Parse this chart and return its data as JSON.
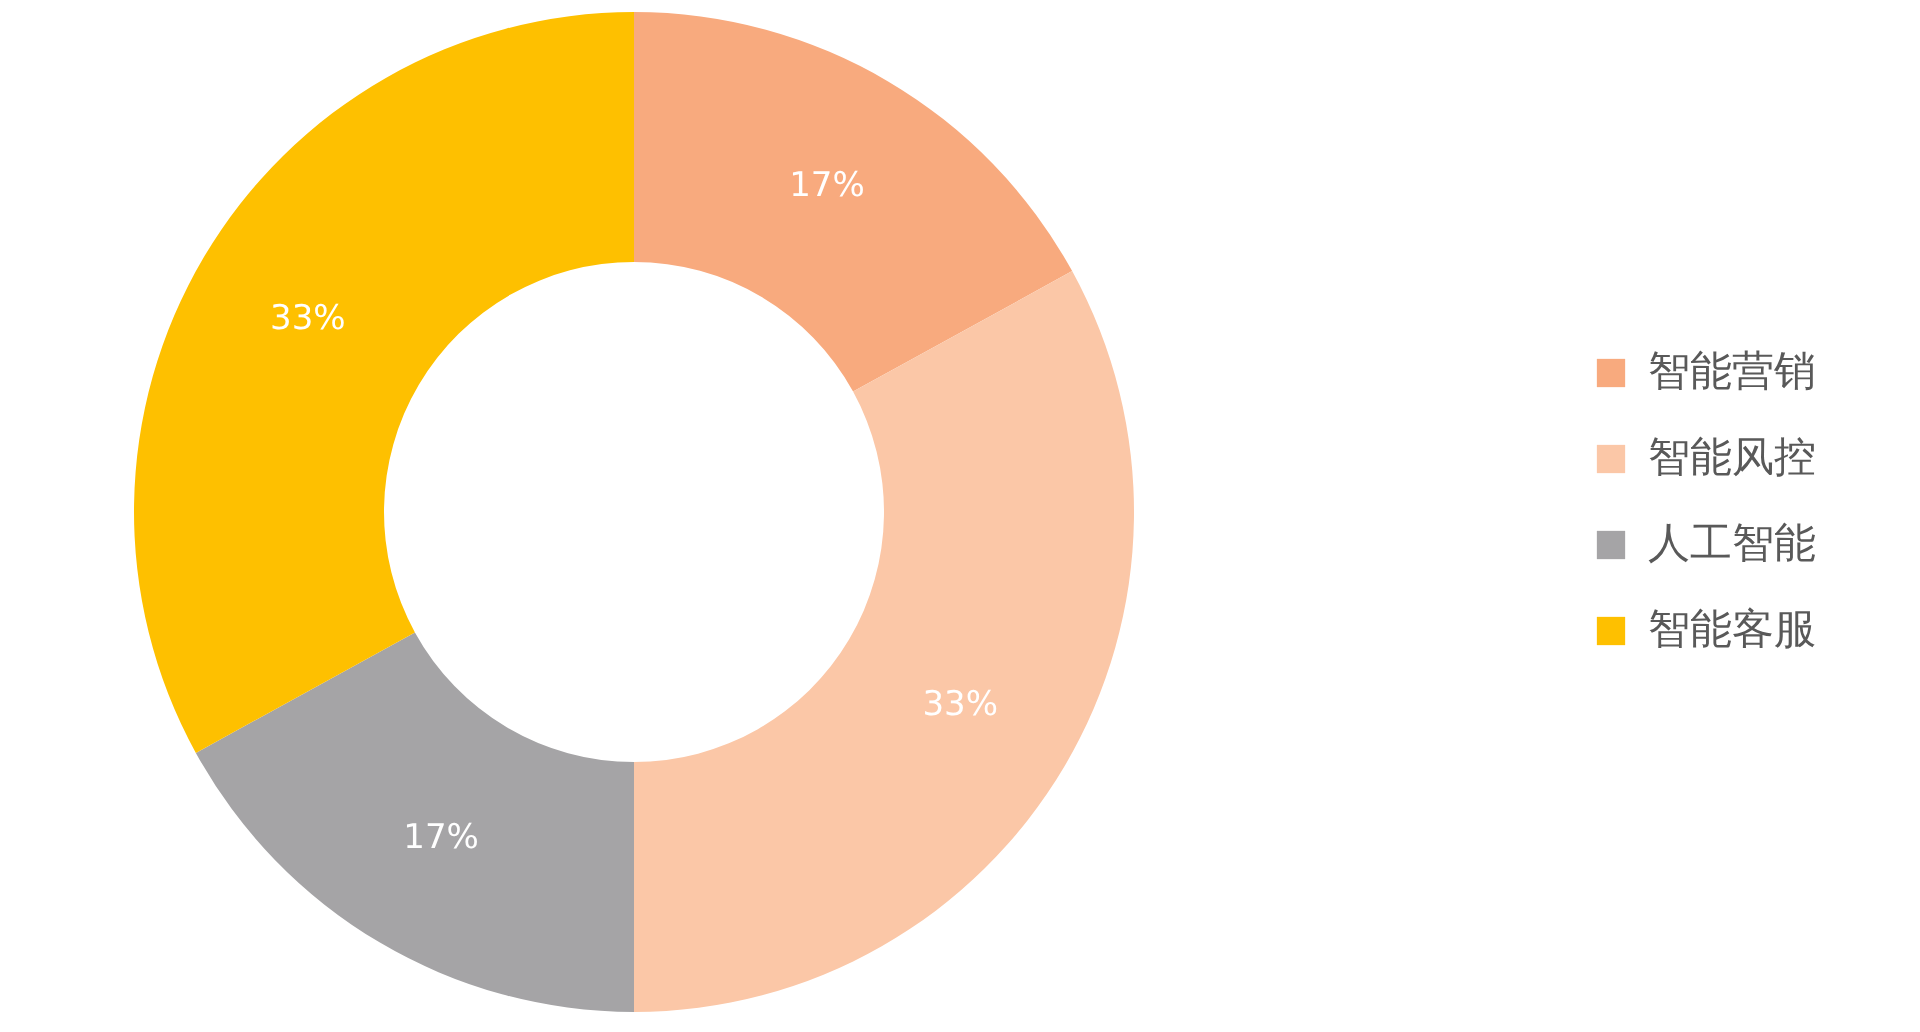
{
  "chart_data": {
    "type": "donut",
    "categories": [
      "智能营销",
      "智能风控",
      "人工智能",
      "智能客服"
    ],
    "values": [
      17,
      33,
      17,
      33
    ],
    "value_labels": [
      "17%",
      "33%",
      "17%",
      "33%"
    ],
    "colors": [
      "#f8aa7e",
      "#fbc7a7",
      "#a5a4a6",
      "#fec000"
    ],
    "legend": "right"
  }
}
